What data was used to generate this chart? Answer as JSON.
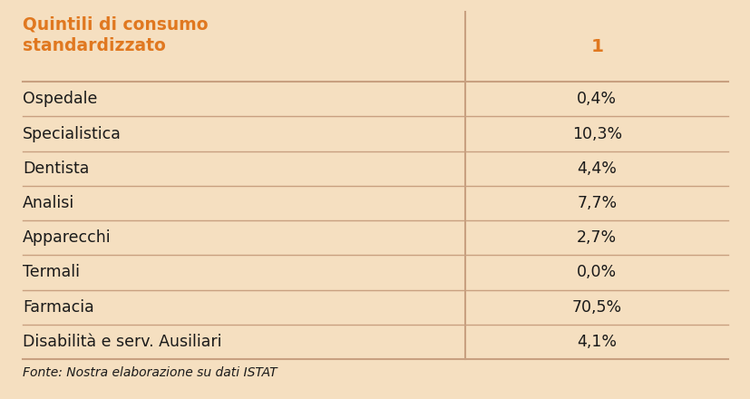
{
  "background_color": "#f5dfc0",
  "header_text_color": "#e07820",
  "header_col1": "Quintili di consumo\nstandardizzato",
  "header_col2": "1",
  "rows": [
    [
      "Ospedale",
      "0,4%"
    ],
    [
      "Specialistica",
      "10,3%"
    ],
    [
      "Dentista",
      "4,4%"
    ],
    [
      "Analisi",
      "7,7%"
    ],
    [
      "Apparecchi",
      "2,7%"
    ],
    [
      "Termali",
      "0,0%"
    ],
    [
      "Farmacia",
      "70,5%"
    ],
    [
      "Disabilità e serv. Ausiliari",
      "4,1%"
    ]
  ],
  "footer": "Fonte: Nostra elaborazione su dati ISTAT",
  "line_color": "#c8a080",
  "text_color": "#1a1a1a",
  "col_split": 0.62,
  "font_size_header": 13.5,
  "font_size_row": 12.5,
  "font_size_footer": 10
}
